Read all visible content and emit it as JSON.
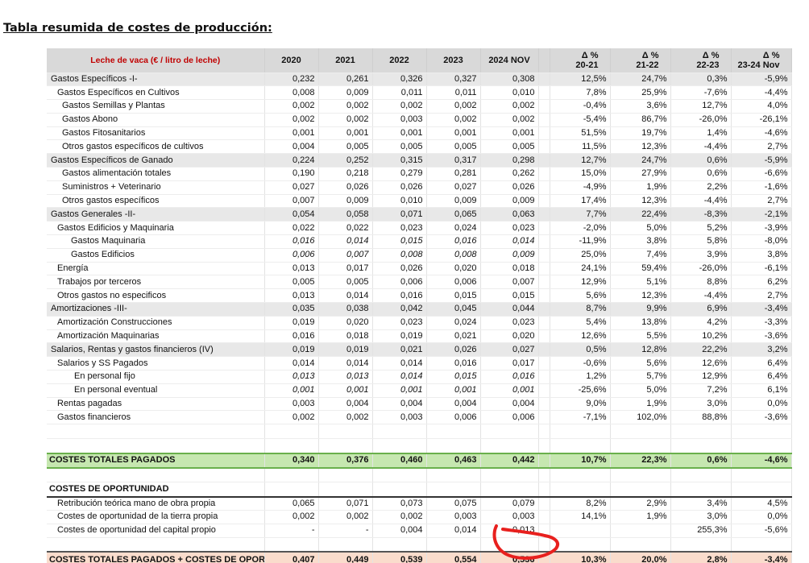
{
  "title": "Tabla resumida de costes de producción:",
  "header": {
    "label": "Leche de vaca (€ / litro de leche)",
    "years": [
      "2020",
      "2021",
      "2022",
      "2023",
      "2024 NOV"
    ],
    "deltas": [
      {
        "symbol": "Δ %",
        "period": "20-21"
      },
      {
        "symbol": "Δ %",
        "period": "21-22"
      },
      {
        "symbol": "Δ %",
        "period": "22-23"
      },
      {
        "symbol": "Δ %",
        "period": "23-24 Nov"
      }
    ]
  },
  "rows": [
    {
      "label": "Gastos Específicos -I-",
      "level": 0,
      "shaded": true,
      "values": [
        "0,232",
        "0,261",
        "0,326",
        "0,327",
        "0,308"
      ],
      "deltas": [
        "12,5%",
        "24,7%",
        "0,3%",
        "-5,9%"
      ]
    },
    {
      "label": "Gastos Específicos en Cultivos",
      "level": 1,
      "shaded": false,
      "values": [
        "0,008",
        "0,009",
        "0,011",
        "0,011",
        "0,010"
      ],
      "deltas": [
        "7,8%",
        "25,9%",
        "-7,6%",
        "-4,4%"
      ]
    },
    {
      "label": "Gastos Semillas y Plantas",
      "level": 2,
      "shaded": false,
      "values": [
        "0,002",
        "0,002",
        "0,002",
        "0,002",
        "0,002"
      ],
      "deltas": [
        "-0,4%",
        "3,6%",
        "12,7%",
        "4,0%"
      ]
    },
    {
      "label": "Gastos Abono",
      "level": 2,
      "shaded": false,
      "values": [
        "0,002",
        "0,002",
        "0,003",
        "0,002",
        "0,002"
      ],
      "deltas": [
        "-5,4%",
        "86,7%",
        "-26,0%",
        "-26,1%"
      ]
    },
    {
      "label": "Gastos Fitosanitarios",
      "level": 2,
      "shaded": false,
      "values": [
        "0,001",
        "0,001",
        "0,001",
        "0,001",
        "0,001"
      ],
      "deltas": [
        "51,5%",
        "19,7%",
        "1,4%",
        "-4,6%"
      ]
    },
    {
      "label": "Otros gastos específicos de cultivos",
      "level": 2,
      "shaded": false,
      "values": [
        "0,004",
        "0,005",
        "0,005",
        "0,005",
        "0,005"
      ],
      "deltas": [
        "11,5%",
        "12,3%",
        "-4,4%",
        "2,7%"
      ]
    },
    {
      "label": "Gastos Específicos de Ganado",
      "level": 0,
      "shaded": true,
      "values": [
        "0,224",
        "0,252",
        "0,315",
        "0,317",
        "0,298"
      ],
      "deltas": [
        "12,7%",
        "24,7%",
        "0,6%",
        "-5,9%"
      ]
    },
    {
      "label": "Gastos alimentación totales",
      "level": 2,
      "shaded": false,
      "values": [
        "0,190",
        "0,218",
        "0,279",
        "0,281",
        "0,262"
      ],
      "deltas": [
        "15,0%",
        "27,9%",
        "0,6%",
        "-6,6%"
      ]
    },
    {
      "label": "Suministros + Veterinario",
      "level": 2,
      "shaded": false,
      "values": [
        "0,027",
        "0,026",
        "0,026",
        "0,027",
        "0,026"
      ],
      "deltas": [
        "-4,9%",
        "1,9%",
        "2,2%",
        "-1,6%"
      ]
    },
    {
      "label": "Otros gastos específicos",
      "level": 2,
      "shaded": false,
      "values": [
        "0,007",
        "0,009",
        "0,010",
        "0,009",
        "0,009"
      ],
      "deltas": [
        "17,4%",
        "12,3%",
        "-4,4%",
        "2,7%"
      ]
    },
    {
      "label": "Gastos Generales -II-",
      "level": 0,
      "shaded": true,
      "values": [
        "0,054",
        "0,058",
        "0,071",
        "0,065",
        "0,063"
      ],
      "deltas": [
        "7,7%",
        "22,4%",
        "-8,3%",
        "-2,1%"
      ]
    },
    {
      "label": "Gastos Edificios y Maquinaria",
      "level": 1,
      "shaded": false,
      "values": [
        "0,022",
        "0,022",
        "0,023",
        "0,024",
        "0,023"
      ],
      "deltas": [
        "-2,0%",
        "5,0%",
        "5,2%",
        "-3,9%"
      ]
    },
    {
      "label": "Gastos Maquinaria",
      "level": 3,
      "shaded": false,
      "italic": true,
      "values": [
        "0,016",
        "0,014",
        "0,015",
        "0,016",
        "0,014"
      ],
      "deltas": [
        "-11,9%",
        "3,8%",
        "5,8%",
        "-8,0%"
      ]
    },
    {
      "label": "Gastos Edificios",
      "level": 3,
      "shaded": false,
      "italic": true,
      "values": [
        "0,006",
        "0,007",
        "0,008",
        "0,008",
        "0,009"
      ],
      "deltas": [
        "25,0%",
        "7,4%",
        "3,9%",
        "3,8%"
      ]
    },
    {
      "label": "Energía",
      "level": 1,
      "shaded": false,
      "values": [
        "0,013",
        "0,017",
        "0,026",
        "0,020",
        "0,018"
      ],
      "deltas": [
        "24,1%",
        "59,4%",
        "-26,0%",
        "-6,1%"
      ]
    },
    {
      "label": "Trabajos por terceros",
      "level": 1,
      "shaded": false,
      "values": [
        "0,005",
        "0,005",
        "0,006",
        "0,006",
        "0,007"
      ],
      "deltas": [
        "12,9%",
        "5,1%",
        "8,8%",
        "6,2%"
      ]
    },
    {
      "label": "Otros gastos no especificos",
      "level": 1,
      "shaded": false,
      "values": [
        "0,013",
        "0,014",
        "0,016",
        "0,015",
        "0,015"
      ],
      "deltas": [
        "5,6%",
        "12,3%",
        "-4,4%",
        "2,7%"
      ]
    },
    {
      "label": "Amortizaciones -III-",
      "level": 0,
      "shaded": true,
      "values": [
        "0,035",
        "0,038",
        "0,042",
        "0,045",
        "0,044"
      ],
      "deltas": [
        "8,7%",
        "9,9%",
        "6,9%",
        "-3,4%"
      ]
    },
    {
      "label": "Amortización Construcciones",
      "level": 1,
      "shaded": false,
      "values": [
        "0,019",
        "0,020",
        "0,023",
        "0,024",
        "0,023"
      ],
      "deltas": [
        "5,4%",
        "13,8%",
        "4,2%",
        "-3,3%"
      ]
    },
    {
      "label": "Amortización Maquinarias",
      "level": 1,
      "shaded": false,
      "values": [
        "0,016",
        "0,018",
        "0,019",
        "0,021",
        "0,020"
      ],
      "deltas": [
        "12,6%",
        "5,5%",
        "10,2%",
        "-3,6%"
      ]
    },
    {
      "label": "Salarios, Rentas y gastos financieros (IV)",
      "level": 0,
      "shaded": true,
      "values": [
        "0,019",
        "0,019",
        "0,021",
        "0,026",
        "0,027"
      ],
      "deltas": [
        "0,5%",
        "12,8%",
        "22,2%",
        "3,2%"
      ]
    },
    {
      "label": "Salarios y SS Pagados",
      "level": 1,
      "shaded": false,
      "values": [
        "0,014",
        "0,014",
        "0,014",
        "0,016",
        "0,017"
      ],
      "deltas": [
        "-0,6%",
        "5,6%",
        "12,6%",
        "6,4%"
      ]
    },
    {
      "label": "En personal fijo",
      "level": 4,
      "shaded": false,
      "italic": true,
      "values": [
        "0,013",
        "0,013",
        "0,014",
        "0,015",
        "0,016"
      ],
      "deltas": [
        "1,2%",
        "5,7%",
        "12,9%",
        "6,4%"
      ]
    },
    {
      "label": "En personal eventual",
      "level": 4,
      "shaded": false,
      "italic": true,
      "values": [
        "0,001",
        "0,001",
        "0,001",
        "0,001",
        "0,001"
      ],
      "deltas": [
        "-25,6%",
        "5,0%",
        "7,2%",
        "6,1%"
      ]
    },
    {
      "label": "Rentas pagadas",
      "level": 1,
      "shaded": false,
      "values": [
        "0,003",
        "0,004",
        "0,004",
        "0,004",
        "0,004"
      ],
      "deltas": [
        "9,0%",
        "1,9%",
        "3,0%",
        "0,0%"
      ]
    },
    {
      "label": "Gastos financieros",
      "level": 1,
      "shaded": false,
      "values": [
        "0,002",
        "0,002",
        "0,003",
        "0,006",
        "0,006"
      ],
      "deltas": [
        "-7,1%",
        "102,0%",
        "88,8%",
        "-3,6%"
      ]
    }
  ],
  "total_paid": {
    "label": "COSTES TOTALES PAGADOS",
    "values": [
      "0,340",
      "0,376",
      "0,460",
      "0,463",
      "0,442"
    ],
    "deltas": [
      "10,7%",
      "22,3%",
      "0,6%",
      "-4,6%"
    ]
  },
  "opportunity": {
    "header": "COSTES DE OPORTUNIDAD",
    "rows": [
      {
        "label": "Retribución teórica mano de obra propia",
        "values": [
          "0,065",
          "0,071",
          "0,073",
          "0,075",
          "0,079"
        ],
        "deltas": [
          "8,2%",
          "2,9%",
          "3,4%",
          "4,5%"
        ]
      },
      {
        "label": "Costes de oportunidad de la tierra propia",
        "values": [
          "0,002",
          "0,002",
          "0,002",
          "0,003",
          "0,003"
        ],
        "deltas": [
          "14,1%",
          "1,9%",
          "3,0%",
          "0,0%"
        ]
      },
      {
        "label": "Costes de oportunidad del capital propio",
        "values": [
          "-",
          "-",
          "0,004",
          "0,014",
          "0,013"
        ],
        "deltas": [
          "",
          "",
          "255,3%",
          "-5,6%"
        ]
      }
    ]
  },
  "grand_total": {
    "label": "COSTES TOTALES PAGADOS + COSTES DE OPORTU",
    "values": [
      "0,407",
      "0,449",
      "0,539",
      "0,554",
      "0,536"
    ],
    "deltas": [
      "10,3%",
      "20,0%",
      "2,8%",
      "-3,4%"
    ]
  },
  "annotation_color": "#e8201e"
}
